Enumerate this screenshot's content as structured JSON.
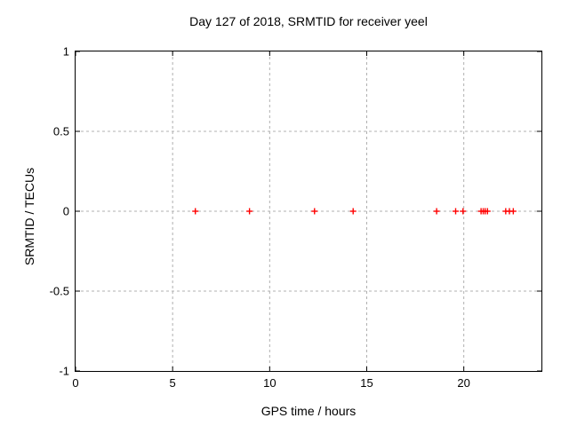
{
  "chart_data": {
    "type": "scatter",
    "title": "Day 127 of 2018, SRMTID for receiver yeel",
    "xlabel": "GPS time / hours",
    "ylabel": "SRMTID / TECUs",
    "xlim": [
      0,
      24
    ],
    "ylim": [
      -1,
      1
    ],
    "xticks": [
      0,
      5,
      10,
      15,
      20
    ],
    "xtick_labels": [
      "0",
      "5",
      "10",
      "15",
      "20"
    ],
    "yticks": [
      1,
      0.5,
      0,
      -0.5,
      -1
    ],
    "ytick_labels": [
      "1",
      "0.5",
      "0",
      "-0.5",
      "-1"
    ],
    "grid": "dashed, at interior x and y ticks",
    "legend": "none",
    "marker": "plus",
    "colors": {
      "marker": "#ff0000",
      "grid": "#b0b0b0",
      "axis": "#000000",
      "text": "#000000",
      "background": "#ffffff"
    },
    "series": [
      {
        "x": [
          6.17,
          8.96,
          12.31,
          14.3,
          18.6,
          19.58,
          19.96,
          20.89,
          21.0,
          21.1,
          21.22,
          22.16,
          22.35,
          22.55
        ],
        "y": [
          0,
          0,
          0,
          0,
          0,
          0,
          0,
          0,
          0,
          0,
          0,
          0,
          0,
          0
        ]
      }
    ]
  }
}
